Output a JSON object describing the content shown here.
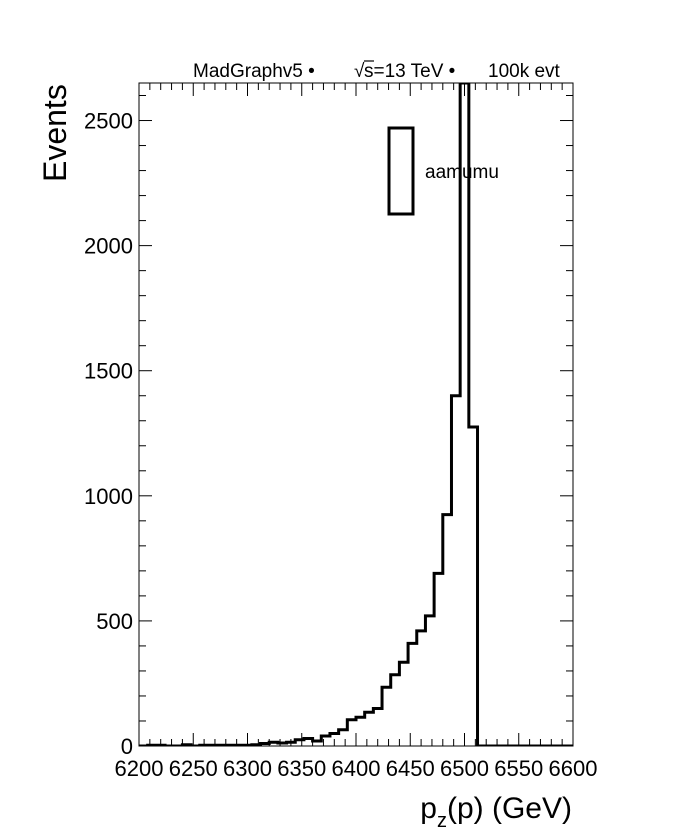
{
  "chart_data": {
    "type": "histogram",
    "title": "MadGraphv5 • √s=13 TeV • 100k evt",
    "title_parts": {
      "generator": "MadGraphv5 •",
      "sqrt_symbol": "√",
      "energy": "s=13 TeV •",
      "events": "100k evt"
    },
    "xlabel": "p_z(p) (GeV)",
    "xlabel_parts": {
      "main": "p",
      "sub": "z",
      "rest": "(p) (GeV)"
    },
    "ylabel": "Events",
    "xlim": [
      6200,
      6600
    ],
    "ylim": [
      0,
      2650
    ],
    "x_ticks": [
      6200,
      6250,
      6300,
      6350,
      6400,
      6450,
      6500,
      6550,
      6600
    ],
    "y_ticks": [
      0,
      500,
      1000,
      1500,
      2000,
      2500
    ],
    "bin_width": 8,
    "legend_position": "top-right",
    "series": [
      {
        "name": "aamumu",
        "bin_edges_start": 6200,
        "values": [
          0,
          3,
          3,
          0,
          0,
          5,
          0,
          3,
          3,
          3,
          3,
          3,
          3,
          5,
          10,
          15,
          12,
          15,
          25,
          30,
          20,
          40,
          50,
          65,
          105,
          115,
          135,
          150,
          235,
          285,
          335,
          410,
          460,
          520,
          690,
          925,
          1400,
          2650,
          1275,
          0,
          0,
          0,
          0,
          0,
          0,
          0,
          0,
          0,
          0,
          0
        ]
      }
    ],
    "colors": {
      "line": "#000000",
      "frame": "#000000",
      "background": "#ffffff"
    }
  }
}
